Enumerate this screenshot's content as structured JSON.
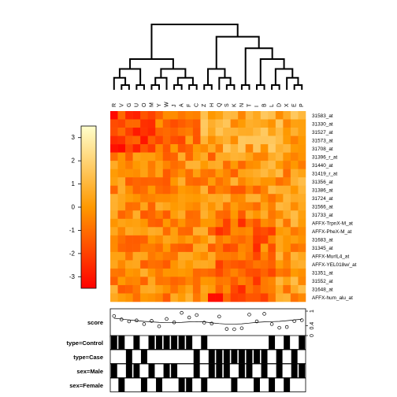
{
  "chart_data": {
    "type": "heatmap",
    "columns": [
      "R",
      "V",
      "G",
      "U",
      "O",
      "M",
      "Y",
      "W",
      "J",
      "A",
      "F",
      "C",
      "Z",
      "H",
      "Q",
      "S",
      "K",
      "N",
      "T",
      "I",
      "B",
      "L",
      "D",
      "X",
      "E",
      "P"
    ],
    "rows": [
      "31583_at",
      "31330_at",
      "31527_at",
      "31573_at",
      "31708_at",
      "31396_r_at",
      "31440_at",
      "31419_r_at",
      "31356_at",
      "31386_at",
      "31724_at",
      "31566_at",
      "31733_at",
      "AFFX-TrpnX-M_at",
      "AFFX-PheX-M_at",
      "31683_at",
      "31345_at",
      "AFFX-MurIL4_at",
      "AFFX-YEL018w/_at",
      "31351_at",
      "31552_at",
      "31648_at",
      "AFFX-hum_alu_at"
    ],
    "color_key": {
      "ticks": [
        3,
        2,
        1,
        0,
        -1,
        -2,
        -3
      ],
      "range": [
        -3.5,
        3.5
      ],
      "low_color": "#ff0000",
      "mid_color": "#ff9900",
      "high_color": "#ffffcc"
    },
    "dendrogram": "column-clustering",
    "side_tracks": {
      "score": {
        "label": "score",
        "axis_ticks": [
          "0",
          "0.4",
          "1"
        ],
        "values": [
          0.8,
          0.66,
          0.58,
          0.62,
          0.47,
          0.6,
          0.38,
          0.68,
          0.54,
          0.93,
          0.74,
          0.84,
          0.53,
          0.49,
          0.78,
          0.27,
          0.26,
          0.3,
          0.86,
          0.58,
          0.89,
          0.47,
          0.32,
          0.35,
          0.59,
          0.63
        ],
        "smooth": [
          0.71,
          0.68,
          0.64,
          0.61,
          0.58,
          0.56,
          0.54,
          0.53,
          0.53,
          0.54,
          0.56,
          0.57,
          0.56,
          0.52,
          0.49,
          0.47,
          0.47,
          0.48,
          0.51,
          0.54,
          0.56,
          0.57,
          0.58,
          0.61,
          0.64,
          0.67
        ]
      },
      "binary": [
        {
          "label": "type=Control",
          "values": [
            1,
            1,
            0,
            1,
            0,
            1,
            1,
            1,
            1,
            1,
            1,
            0,
            1,
            0,
            0,
            0,
            0,
            0,
            0,
            0,
            0,
            1,
            0,
            1,
            0,
            1
          ]
        },
        {
          "label": "type=Case",
          "values": [
            0,
            0,
            1,
            0,
            1,
            0,
            0,
            0,
            0,
            0,
            0,
            1,
            0,
            1,
            1,
            1,
            1,
            1,
            1,
            1,
            1,
            0,
            1,
            0,
            1,
            0
          ]
        },
        {
          "label": "sex=Male",
          "values": [
            1,
            0,
            1,
            1,
            0,
            1,
            0,
            1,
            1,
            0,
            0,
            1,
            0,
            1,
            1,
            1,
            0,
            1,
            1,
            0,
            1,
            0,
            1,
            0,
            1,
            1
          ]
        },
        {
          "label": "sex=Female",
          "values": [
            0,
            1,
            0,
            0,
            1,
            0,
            1,
            0,
            0,
            1,
            1,
            0,
            1,
            0,
            0,
            0,
            1,
            0,
            0,
            1,
            0,
            1,
            0,
            1,
            0,
            0
          ]
        }
      ]
    }
  }
}
